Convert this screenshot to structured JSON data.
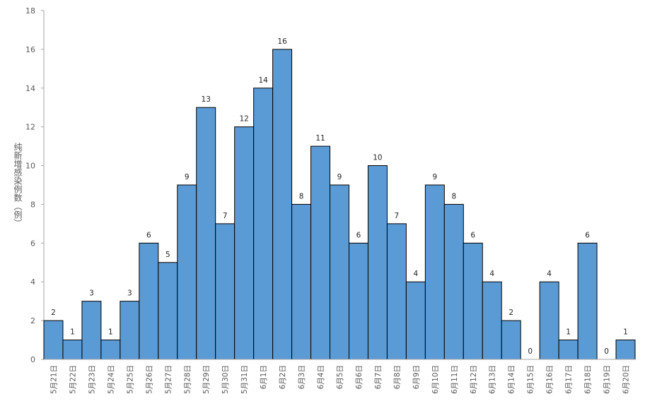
{
  "chart_data": {
    "type": "bar",
    "title": "",
    "xlabel": "",
    "ylabel": "纯新增感染例数（例）",
    "ylim": [
      0,
      18
    ],
    "yticks": [
      0,
      2,
      4,
      6,
      8,
      10,
      12,
      14,
      16,
      18
    ],
    "grid": false,
    "legend": "none",
    "bar_color": "#5B9BD5",
    "bar_edge_color": "#000000",
    "categories": [
      "5月21日",
      "5月22日",
      "5月23日",
      "5月24日",
      "5月25日",
      "5月26日",
      "5月27日",
      "5月28日",
      "5月29日",
      "5月30日",
      "5月31日",
      "6月1日",
      "6月2日",
      "6月3日",
      "6月4日",
      "6月5日",
      "6月6日",
      "6月7日",
      "6月8日",
      "6月9日",
      "6月10日",
      "6月11日",
      "6月12日",
      "6月13日",
      "6月14日",
      "6月15日",
      "6月16日",
      "6月17日",
      "6月18日",
      "6月19日",
      "6月20日"
    ],
    "values": [
      2,
      1,
      3,
      1,
      3,
      6,
      5,
      9,
      13,
      7,
      12,
      14,
      16,
      8,
      11,
      9,
      6,
      10,
      7,
      4,
      9,
      8,
      6,
      4,
      2,
      0,
      4,
      1,
      6,
      0,
      1
    ],
    "data_labels": true
  }
}
